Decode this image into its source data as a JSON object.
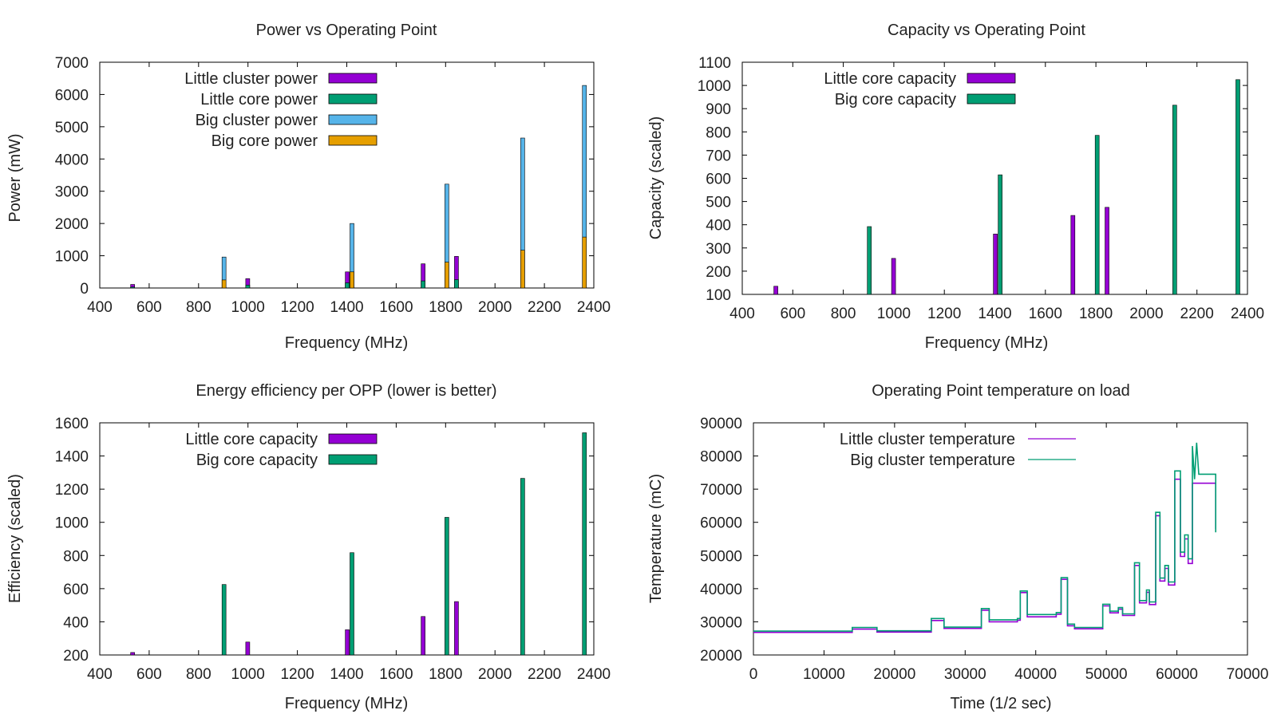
{
  "colors": {
    "purple": "#9400d3",
    "green": "#009e73",
    "blue": "#56b4e9",
    "orange": "#e69f00"
  },
  "chart_data": [
    {
      "type": "bar",
      "title": "Power vs Operating Point",
      "xlabel": "Frequency (MHz)",
      "ylabel": "Power (mW)",
      "xlim": [
        400,
        2400
      ],
      "ylim": [
        0,
        7000
      ],
      "xticks": [
        400,
        600,
        800,
        1000,
        1200,
        1400,
        1600,
        1800,
        2000,
        2200,
        2400
      ],
      "yticks": [
        0,
        1000,
        2000,
        3000,
        4000,
        5000,
        6000,
        7000
      ],
      "legend": "top-left",
      "series": [
        {
          "name": "Little cluster power",
          "color": "#9400d3",
          "points": [
            [
              533,
              110
            ],
            [
              999,
              290
            ],
            [
              1402,
              500
            ],
            [
              1709,
              750
            ],
            [
              1844,
              980
            ]
          ]
        },
        {
          "name": "Little core power",
          "color": "#009e73",
          "points": [
            [
              533,
              30
            ],
            [
              999,
              90
            ],
            [
              1402,
              160
            ],
            [
              1709,
              220
            ],
            [
              1844,
              260
            ]
          ]
        },
        {
          "name": "Big cluster power",
          "color": "#56b4e9",
          "points": [
            [
              903,
              960
            ],
            [
              1421,
              2000
            ],
            [
              1805,
              3220
            ],
            [
              2112,
              4650
            ],
            [
              2362,
              6280
            ]
          ]
        },
        {
          "name": "Big core power",
          "color": "#e69f00",
          "points": [
            [
              903,
              250
            ],
            [
              1421,
              500
            ],
            [
              1805,
              800
            ],
            [
              2112,
              1170
            ],
            [
              2362,
              1580
            ]
          ]
        }
      ]
    },
    {
      "type": "bar",
      "title": "Capacity vs Operating Point",
      "xlabel": "Frequency (MHz)",
      "ylabel": "Capacity (scaled)",
      "xlim": [
        400,
        2400
      ],
      "ylim": [
        100,
        1100
      ],
      "xticks": [
        400,
        600,
        800,
        1000,
        1200,
        1400,
        1600,
        1800,
        2000,
        2200,
        2400
      ],
      "yticks": [
        100,
        200,
        300,
        400,
        500,
        600,
        700,
        800,
        900,
        1000,
        1100
      ],
      "legend": "top-left",
      "series": [
        {
          "name": "Little core capacity",
          "color": "#9400d3",
          "points": [
            [
              533,
              135
            ],
            [
              999,
              255
            ],
            [
              1402,
              360
            ],
            [
              1709,
              440
            ],
            [
              1844,
              475
            ]
          ]
        },
        {
          "name": "Big core capacity",
          "color": "#009e73",
          "points": [
            [
              903,
              392
            ],
            [
              1421,
              615
            ],
            [
              1805,
              785
            ],
            [
              2112,
              915
            ],
            [
              2362,
              1025
            ]
          ]
        }
      ]
    },
    {
      "type": "bar",
      "title": "Energy efficiency per OPP (lower is better)",
      "xlabel": "Frequency (MHz)",
      "ylabel": "Efficiency (scaled)",
      "xlim": [
        400,
        2400
      ],
      "ylim": [
        200,
        1600
      ],
      "xticks": [
        400,
        600,
        800,
        1000,
        1200,
        1400,
        1600,
        1800,
        2000,
        2200,
        2400
      ],
      "yticks": [
        200,
        400,
        600,
        800,
        1000,
        1200,
        1400,
        1600
      ],
      "legend": "top-left",
      "series": [
        {
          "name": "Little core capacity",
          "color": "#9400d3",
          "points": [
            [
              533,
              215
            ],
            [
              999,
              278
            ],
            [
              1402,
              352
            ],
            [
              1709,
              432
            ],
            [
              1844,
              522
            ]
          ]
        },
        {
          "name": "Big core capacity",
          "color": "#009e73",
          "points": [
            [
              903,
              625
            ],
            [
              1421,
              817
            ],
            [
              1805,
              1030
            ],
            [
              2112,
              1265
            ],
            [
              2362,
              1540
            ]
          ]
        }
      ]
    },
    {
      "type": "line",
      "title": "Operating Point temperature on load",
      "xlabel": "Time (1/2 sec)",
      "ylabel": "Temperature (mC)",
      "xlim": [
        0,
        70000
      ],
      "ylim": [
        20000,
        90000
      ],
      "xticks": [
        0,
        10000,
        20000,
        30000,
        40000,
        50000,
        60000,
        70000
      ],
      "yticks": [
        20000,
        30000,
        40000,
        50000,
        60000,
        70000,
        80000,
        90000
      ],
      "legend": "top-left",
      "series": [
        {
          "name": "Little cluster temperature",
          "color": "#9400d3",
          "points": [
            [
              0,
              26800
            ],
            [
              14000,
              26800
            ],
            [
              14000,
              27800
            ],
            [
              17500,
              27800
            ],
            [
              17500,
              26900
            ],
            [
              25200,
              26900
            ],
            [
              25200,
              30400
            ],
            [
              27000,
              30400
            ],
            [
              27000,
              28000
            ],
            [
              32300,
              28000
            ],
            [
              32300,
              33500
            ],
            [
              33400,
              33500
            ],
            [
              33400,
              30000
            ],
            [
              37400,
              30000
            ],
            [
              37400,
              30500
            ],
            [
              37800,
              30500
            ],
            [
              37800,
              38800
            ],
            [
              38800,
              38800
            ],
            [
              38800,
              31500
            ],
            [
              42900,
              31500
            ],
            [
              42900,
              32300
            ],
            [
              43600,
              32300
            ],
            [
              43600,
              42800
            ],
            [
              44500,
              42800
            ],
            [
              44500,
              28800
            ],
            [
              45500,
              28800
            ],
            [
              45500,
              27900
            ],
            [
              49500,
              27900
            ],
            [
              49500,
              34800
            ],
            [
              50500,
              34800
            ],
            [
              50500,
              32700
            ],
            [
              51700,
              32700
            ],
            [
              51700,
              33800
            ],
            [
              52300,
              33800
            ],
            [
              52300,
              31900
            ],
            [
              54000,
              31900
            ],
            [
              54000,
              47000
            ],
            [
              54700,
              47000
            ],
            [
              54700,
              35700
            ],
            [
              55700,
              35700
            ],
            [
              55700,
              38900
            ],
            [
              56100,
              38900
            ],
            [
              56100,
              35200
            ],
            [
              57000,
              35200
            ],
            [
              57000,
              62000
            ],
            [
              57600,
              62000
            ],
            [
              57600,
              42300
            ],
            [
              58300,
              42300
            ],
            [
              58300,
              46100
            ],
            [
              58800,
              46100
            ],
            [
              58800,
              41100
            ],
            [
              59700,
              41100
            ],
            [
              59700,
              73000
            ],
            [
              60500,
              73000
            ],
            [
              60500,
              49700
            ],
            [
              61100,
              49700
            ],
            [
              61100,
              55000
            ],
            [
              61600,
              55000
            ],
            [
              61600,
              47600
            ],
            [
              62200,
              47600
            ],
            [
              62200,
              71800
            ],
            [
              65500,
              71800
            ],
            [
              65500,
              58000
            ]
          ]
        },
        {
          "name": "Big cluster temperature",
          "color": "#009e73",
          "points": [
            [
              0,
              27200
            ],
            [
              14000,
              27200
            ],
            [
              14000,
              28300
            ],
            [
              17500,
              28300
            ],
            [
              17500,
              27300
            ],
            [
              25200,
              27300
            ],
            [
              25200,
              31000
            ],
            [
              27000,
              31000
            ],
            [
              27000,
              28400
            ],
            [
              32300,
              28400
            ],
            [
              32300,
              34000
            ],
            [
              33400,
              34000
            ],
            [
              33400,
              30600
            ],
            [
              37400,
              30600
            ],
            [
              37400,
              31000
            ],
            [
              37800,
              31000
            ],
            [
              37800,
              39300
            ],
            [
              38800,
              39300
            ],
            [
              38800,
              32200
            ],
            [
              42900,
              32200
            ],
            [
              42900,
              32800
            ],
            [
              43600,
              32800
            ],
            [
              43600,
              43300
            ],
            [
              44500,
              43300
            ],
            [
              44500,
              29300
            ],
            [
              45500,
              29300
            ],
            [
              45500,
              28300
            ],
            [
              49500,
              28300
            ],
            [
              49500,
              35300
            ],
            [
              50500,
              35300
            ],
            [
              50500,
              33200
            ],
            [
              51700,
              33200
            ],
            [
              51700,
              34300
            ],
            [
              52300,
              34300
            ],
            [
              52300,
              32400
            ],
            [
              54000,
              32400
            ],
            [
              54000,
              47800
            ],
            [
              54700,
              47800
            ],
            [
              54700,
              36400
            ],
            [
              55700,
              36400
            ],
            [
              55700,
              39600
            ],
            [
              56100,
              39600
            ],
            [
              56100,
              36000
            ],
            [
              57000,
              36000
            ],
            [
              57000,
              63000
            ],
            [
              57600,
              63000
            ],
            [
              57600,
              43200
            ],
            [
              58300,
              43200
            ],
            [
              58300,
              47000
            ],
            [
              58800,
              47000
            ],
            [
              58800,
              42000
            ],
            [
              59700,
              42000
            ],
            [
              59700,
              75500
            ],
            [
              60500,
              75500
            ],
            [
              60500,
              51000
            ],
            [
              61100,
              51000
            ],
            [
              61100,
              56200
            ],
            [
              61600,
              56200
            ],
            [
              61600,
              49000
            ],
            [
              62200,
              49000
            ],
            [
              62200,
              83000
            ],
            [
              62500,
              73000
            ],
            [
              62800,
              84000
            ],
            [
              63100,
              74500
            ],
            [
              65500,
              74500
            ],
            [
              65500,
              57000
            ]
          ]
        }
      ]
    }
  ]
}
